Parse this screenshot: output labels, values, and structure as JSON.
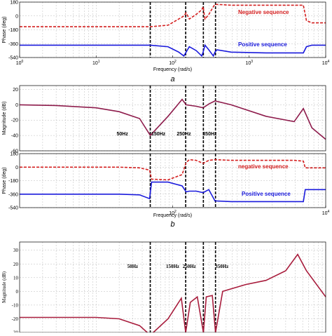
{
  "chart_data": [
    {
      "type": "line",
      "xscale": "log",
      "caption": "a",
      "xlabel": "Frequency  (rad/s)",
      "ylabel": "Phase (deg)",
      "xlim": [
        1,
        10000
      ],
      "ylim": [
        -540,
        180
      ],
      "yticks": [
        180,
        0,
        -180,
        -360,
        -540
      ],
      "xticks": [
        {
          "value": 1,
          "label": "10",
          "exponent": "0"
        },
        {
          "value": 10,
          "label": "10",
          "exponent": "1"
        },
        {
          "value": 100,
          "label": "10",
          "exponent": "2"
        },
        {
          "value": 1000,
          "label": "10",
          "exponent": "3"
        },
        {
          "value": 10000,
          "label": "10",
          "exponent": "4"
        }
      ],
      "vlines": [
        51,
        148,
        252,
        363
      ],
      "x": [
        1,
        3,
        10,
        20,
        37,
        51,
        87,
        120,
        140,
        150,
        165,
        203,
        240,
        250,
        265,
        297,
        340,
        357,
        380,
        580,
        1660,
        3870,
        5100,
        5600,
        6600,
        10000
      ],
      "series": [
        {
          "name": "Negative sequence",
          "color": "#d42020",
          "dash": true,
          "values": [
            -140,
            -140,
            -140,
            -140,
            -140,
            -140,
            -120,
            -40,
            0,
            40,
            -40,
            20,
            80,
            120,
            -40,
            20,
            120,
            150,
            150,
            140,
            140,
            140,
            140,
            -60,
            -90,
            -90
          ]
        },
        {
          "name": "Positive sequence",
          "color": "#1a1adc",
          "dash": false,
          "values": [
            -380,
            -380,
            -380,
            -380,
            -380,
            -380,
            -400,
            -470,
            -520,
            -470,
            -400,
            -450,
            -520,
            -470,
            -380,
            -440,
            -520,
            -470,
            -440,
            -470,
            -480,
            -480,
            -480,
            -400,
            -380,
            -380
          ]
        }
      ]
    },
    {
      "type": "line",
      "xscale": "log",
      "ylabel": "Magnitude (dB)",
      "xlim": [
        1,
        10000
      ],
      "ylim": [
        -60,
        25
      ],
      "yticks": [
        20,
        0,
        -20,
        -40,
        -60
      ],
      "vlines": [
        51,
        148,
        252,
        363
      ],
      "annotations": [
        {
          "text": "50Hz",
          "x": 22
        },
        {
          "text": "150Hz",
          "x": 65
        },
        {
          "text": "250Hz",
          "x": 140
        },
        {
          "text": "350Hz",
          "x": 305
        }
      ],
      "x": [
        1,
        3,
        10,
        20,
        37,
        51,
        87,
        133,
        150,
        203,
        250,
        297,
        357,
        580,
        1660,
        3870,
        5100,
        6600,
        10000
      ],
      "series": [
        {
          "color": "#8e1c4c",
          "dash": false,
          "values": [
            0,
            -1,
            -4,
            -9,
            -18,
            -40,
            -15,
            7,
            0,
            -2,
            -4,
            1,
            5,
            0,
            -15,
            -22,
            -5,
            -30,
            -45
          ]
        }
      ]
    },
    {
      "type": "line",
      "xscale": "log",
      "xlabel": "Frequency  (rad/s)",
      "ylabel": "Phase (deg)",
      "caption": "b",
      "xlim": [
        1,
        10000
      ],
      "ylim": [
        -540,
        180
      ],
      "yticks": [
        180,
        0,
        -180,
        -360,
        -540
      ],
      "xticks": [
        {
          "value": 100,
          "label": "10",
          "exponent": "2"
        },
        {
          "value": 10000,
          "label": "10",
          "exponent": "4"
        }
      ],
      "vlines": [
        51,
        148,
        252,
        363
      ],
      "x": [
        1,
        3,
        10,
        20,
        37,
        50,
        53,
        87,
        133,
        150,
        165,
        203,
        250,
        297,
        357,
        580,
        1660,
        3870,
        5100,
        5400,
        10000
      ],
      "series": [
        {
          "name": "negative sequence",
          "color": "#d42020",
          "dash": true,
          "values": [
            0,
            0,
            0,
            0,
            -10,
            -40,
            -160,
            -170,
            -100,
            60,
            100,
            90,
            50,
            90,
            100,
            90,
            90,
            90,
            80,
            -10,
            -10
          ]
        },
        {
          "name": "Positive sequence",
          "color": "#1a1adc",
          "dash": false,
          "values": [
            -360,
            -360,
            -360,
            -360,
            -370,
            -420,
            -200,
            -200,
            -250,
            -330,
            -320,
            -320,
            -340,
            -300,
            -450,
            -460,
            -460,
            -460,
            -460,
            -300,
            -300
          ]
        }
      ]
    },
    {
      "type": "line",
      "xscale": "log",
      "ylabel": "Magnitude (dB)",
      "xlim": [
        1,
        10000
      ],
      "ylim": [
        -30,
        36
      ],
      "yticks": [
        30,
        20,
        10,
        0,
        -10,
        -20,
        -30
      ],
      "vlines": [
        51,
        148,
        252,
        363
      ],
      "annotations": [
        {
          "text": "50Hz",
          "x": 30
        },
        {
          "text": "150Hz",
          "x": 100
        },
        {
          "text": "250Hz",
          "x": 165
        },
        {
          "text": "350Hz",
          "x": 440
        }
      ],
      "x": [
        1,
        3,
        10,
        20,
        37,
        51,
        87,
        130,
        148,
        170,
        210,
        252,
        275,
        330,
        363,
        450,
        900,
        1660,
        3000,
        4300,
        5600,
        10000
      ],
      "series": [
        {
          "color": "#a81c3c",
          "dash": false,
          "values": [
            -19,
            -19,
            -19,
            -20,
            -25,
            -32,
            -20,
            -5,
            -30,
            -8,
            -4,
            -30,
            -4,
            -3,
            -30,
            0,
            5,
            8,
            15,
            27,
            15,
            -4
          ]
        }
      ]
    }
  ]
}
